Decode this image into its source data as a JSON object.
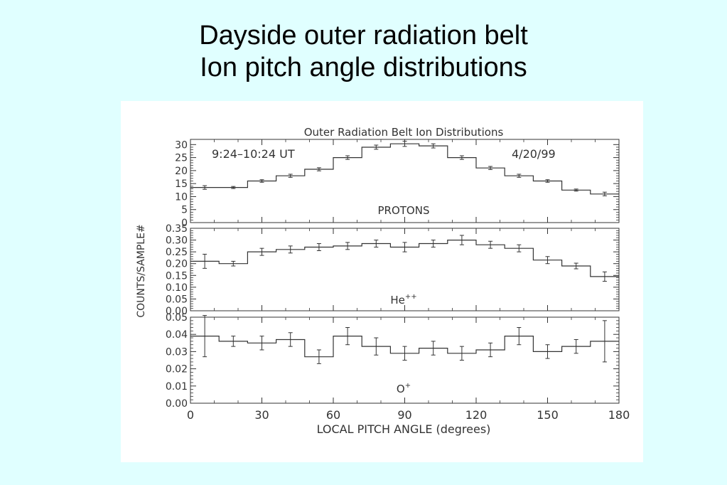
{
  "slide": {
    "title_line1": "Dayside outer radiation belt",
    "title_line2": "Ion pitch angle distributions"
  },
  "chart_data": {
    "type": "line",
    "style": "histogram-step with error bars",
    "title": "Outer Radiation Belt Ion Distributions",
    "ylabel": "COUNTS/SAMPLE#",
    "xlabel": "LOCAL PITCH ANGLE (degrees)",
    "xlim": [
      0,
      180
    ],
    "x_ticks": [
      0,
      30,
      60,
      90,
      120,
      150,
      180
    ],
    "x_tick_labels": [
      "0",
      "30",
      "60",
      "90",
      "120",
      "150",
      "180"
    ],
    "bin_edges": [
      0,
      12,
      24,
      36,
      48,
      60,
      72,
      84,
      96,
      108,
      120,
      132,
      144,
      156,
      168,
      180
    ],
    "x": [
      6,
      18,
      30,
      42,
      54,
      66,
      78,
      90,
      102,
      114,
      126,
      138,
      150,
      162,
      174
    ],
    "panels": [
      {
        "name": "PROTONS",
        "time_range": "9:24–10:24 UT",
        "date": "4/20/99",
        "ylim": [
          0,
          32
        ],
        "y_ticks": [
          0,
          5,
          10,
          15,
          20,
          25,
          30
        ],
        "y_tick_labels": [
          "0",
          "5",
          "10",
          "15",
          "20",
          "25",
          "30"
        ],
        "values": [
          13.5,
          13.5,
          16,
          18,
          20.5,
          25,
          29,
          30.3,
          29.5,
          25,
          21,
          18,
          16,
          12.5,
          11
        ],
        "errors": [
          0.7,
          0.4,
          0.5,
          0.6,
          0.6,
          0.7,
          0.8,
          1.0,
          0.8,
          0.7,
          0.6,
          0.6,
          0.5,
          0.4,
          0.7
        ]
      },
      {
        "name": "He++",
        "ylim": [
          0,
          0.35
        ],
        "y_ticks": [
          0,
          0.05,
          0.1,
          0.15,
          0.2,
          0.25,
          0.3,
          0.35
        ],
        "y_tick_labels": [
          "0.00",
          "0.05",
          "0.10",
          "0.15",
          "0.20",
          "0.25",
          "0.30",
          "0.35"
        ],
        "values": [
          0.21,
          0.2,
          0.25,
          0.26,
          0.27,
          0.275,
          0.285,
          0.27,
          0.285,
          0.3,
          0.28,
          0.265,
          0.215,
          0.19,
          0.145
        ],
        "errors": [
          0.03,
          0.01,
          0.015,
          0.015,
          0.015,
          0.015,
          0.015,
          0.02,
          0.015,
          0.02,
          0.015,
          0.015,
          0.015,
          0.012,
          0.02
        ]
      },
      {
        "name": "O+",
        "ylim": [
          0,
          0.05
        ],
        "y_ticks": [
          0,
          0.01,
          0.02,
          0.03,
          0.04,
          0.05
        ],
        "y_tick_labels": [
          "0.00",
          "0.01",
          "0.02",
          "0.03",
          "0.04",
          "0.05"
        ],
        "values": [
          0.039,
          0.036,
          0.035,
          0.037,
          0.027,
          0.039,
          0.033,
          0.029,
          0.032,
          0.029,
          0.031,
          0.039,
          0.03,
          0.033,
          0.036
        ],
        "errors": [
          0.012,
          0.003,
          0.004,
          0.004,
          0.004,
          0.005,
          0.005,
          0.004,
          0.004,
          0.004,
          0.004,
          0.005,
          0.004,
          0.004,
          0.012
        ]
      }
    ],
    "grid": false,
    "legend": "none"
  }
}
